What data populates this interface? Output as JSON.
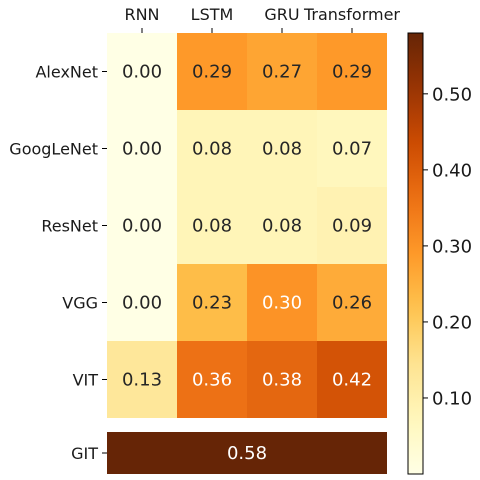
{
  "chart_data": {
    "type": "heatmap",
    "columns": [
      "RNN",
      "LSTM",
      "GRU",
      "Transformer"
    ],
    "rows": [
      "AlexNet",
      "GoogLeNet",
      "ResNet",
      "VGG",
      "VIT"
    ],
    "values": [
      [
        0.0,
        0.29,
        0.27,
        0.29
      ],
      [
        0.0,
        0.08,
        0.08,
        0.07
      ],
      [
        0.0,
        0.08,
        0.08,
        0.09
      ],
      [
        0.0,
        0.23,
        0.3,
        0.26
      ],
      [
        0.13,
        0.36,
        0.38,
        0.42
      ]
    ],
    "labels": [
      [
        "0.00",
        "0.29",
        "0.27",
        "0.29"
      ],
      [
        "0.00",
        "0.08",
        "0.08",
        "0.07"
      ],
      [
        "0.00",
        "0.08",
        "0.08",
        "0.09"
      ],
      [
        "0.00",
        "0.23",
        "0.30",
        "0.26"
      ],
      [
        "0.13",
        "0.36",
        "0.38",
        "0.42"
      ]
    ],
    "summary_row": {
      "label": "GIT",
      "value": 0.58,
      "text": "0.58"
    },
    "colormap": "YlOrBr",
    "colorbar": {
      "min": 0.0,
      "max": 0.58,
      "ticks": [
        0.1,
        0.2,
        0.3,
        0.4,
        0.5
      ],
      "tick_labels": [
        "0.10",
        "0.20",
        "0.30",
        "0.40",
        "0.50"
      ]
    }
  }
}
